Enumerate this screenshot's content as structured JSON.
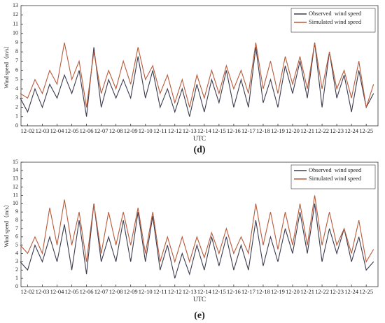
{
  "chart_data": [
    {
      "type": "line",
      "title": "(d)",
      "xlabel": "UTC",
      "ylabel": "Wind speed（m/s）",
      "legend": "upper right",
      "x": [
        1.5,
        2,
        2.5,
        3,
        3.5,
        4,
        4.5,
        5,
        5.5,
        6,
        6.5,
        7,
        7.5,
        8,
        8.5,
        9,
        9.5,
        10,
        10.5,
        11,
        11.5,
        12,
        12.5,
        13,
        13.5,
        14,
        14.5,
        15,
        15.5,
        16,
        16.5,
        17,
        17.5,
        18,
        18.5,
        19,
        19.5,
        20,
        20.5,
        21,
        21.5,
        22,
        22.5,
        23,
        23.5,
        24,
        24.5,
        25,
        25.5
      ],
      "series": [
        {
          "name": "Observed  wind speed",
          "color": "#3b3b4f",
          "values": [
            3,
            1.5,
            4,
            2,
            4.5,
            3,
            5.5,
            3.5,
            6,
            1,
            8.5,
            2,
            5,
            3,
            5,
            3,
            7.5,
            3,
            6,
            2,
            4,
            1.5,
            4,
            1,
            4.5,
            1.5,
            5,
            2.5,
            6,
            2,
            5,
            2,
            8.5,
            2.5,
            5,
            2,
            6.5,
            3.5,
            7,
            3,
            9,
            2,
            8,
            3,
            5.5,
            1.5,
            6,
            2,
            3.5
          ]
        },
        {
          "name": "Simulated wind speed",
          "color": "#b85a3a",
          "values": [
            3.5,
            3,
            5,
            3.5,
            6,
            4.5,
            9,
            5,
            7,
            2,
            8,
            3.5,
            6,
            4,
            7,
            4.5,
            8.5,
            5,
            6.5,
            3.5,
            5.5,
            2.5,
            5,
            2,
            5.5,
            3,
            6,
            3.5,
            6.5,
            4,
            6,
            3.5,
            9,
            4,
            7,
            3.5,
            7.5,
            4.5,
            7.5,
            4,
            9,
            4,
            8,
            4,
            6,
            3,
            7,
            2,
            4.5
          ]
        }
      ],
      "xlim": [
        1.55,
        25.8
      ],
      "xticks": [
        {
          "value": 2,
          "label": "12-02"
        },
        {
          "value": 3,
          "label": "12-03"
        },
        {
          "value": 4,
          "label": "12-04"
        },
        {
          "value": 5,
          "label": "12-05"
        },
        {
          "value": 6,
          "label": "12-06"
        },
        {
          "value": 7,
          "label": "12-07"
        },
        {
          "value": 8,
          "label": "12-08"
        },
        {
          "value": 9,
          "label": "12-09"
        },
        {
          "value": 10,
          "label": "12-10"
        },
        {
          "value": 11,
          "label": "12-11"
        },
        {
          "value": 12,
          "label": "12-12"
        },
        {
          "value": 13,
          "label": "12-13"
        },
        {
          "value": 14,
          "label": "12-14"
        },
        {
          "value": 15,
          "label": "12-15"
        },
        {
          "value": 16,
          "label": "12-16"
        },
        {
          "value": 17,
          "label": "12-17"
        },
        {
          "value": 18,
          "label": "12-18"
        },
        {
          "value": 19,
          "label": "12-19"
        },
        {
          "value": 20,
          "label": "12-20"
        },
        {
          "value": 21,
          "label": "12-21"
        },
        {
          "value": 22,
          "label": "12-22"
        },
        {
          "value": 23,
          "label": "12-23"
        },
        {
          "value": 24,
          "label": "12-24"
        },
        {
          "value": 25,
          "label": "12-25"
        }
      ],
      "ylim": [
        0,
        13
      ],
      "yticks": [
        0,
        1,
        2,
        3,
        4,
        5,
        6,
        7,
        8,
        9,
        10,
        11,
        12,
        13
      ]
    },
    {
      "type": "line",
      "title": "(e)",
      "xlabel": "UTC",
      "ylabel": "Wind speed（m/s）",
      "legend": "upper right",
      "x": [
        1.5,
        2,
        2.5,
        3,
        3.5,
        4,
        4.5,
        5,
        5.5,
        6,
        6.5,
        7,
        7.5,
        8,
        8.5,
        9,
        9.5,
        10,
        10.5,
        11,
        11.5,
        12,
        12.5,
        13,
        13.5,
        14,
        14.5,
        15,
        15.5,
        16,
        16.5,
        17,
        17.5,
        18,
        18.5,
        19,
        19.5,
        20,
        20.5,
        21,
        21.5,
        22,
        22.5,
        23,
        23.5,
        24,
        24.5,
        25,
        25.5
      ],
      "series": [
        {
          "name": "Observed  wind speed",
          "color": "#3b3b4f",
          "values": [
            3,
            2,
            5,
            3,
            6,
            3,
            7.5,
            2,
            8,
            1.5,
            10,
            3,
            6,
            3,
            8,
            3,
            9,
            3,
            8.5,
            2,
            5,
            1,
            4,
            1.5,
            5,
            2,
            6,
            2.5,
            6,
            2,
            5,
            2,
            8,
            2.5,
            6,
            3,
            7,
            4,
            9,
            4,
            10,
            3,
            7,
            4,
            7,
            3,
            6,
            2,
            3
          ]
        },
        {
          "name": "Simulated wind speed",
          "color": "#b85a3a",
          "values": [
            5,
            4,
            6,
            4,
            9.5,
            5,
            10.5,
            5,
            9,
            3,
            10,
            4,
            9,
            5,
            9,
            5,
            9.5,
            4,
            9,
            3,
            6,
            3,
            6,
            3,
            6,
            3.5,
            6.5,
            4,
            7,
            4,
            6,
            4,
            10,
            5,
            9,
            4.5,
            9,
            5,
            10,
            5,
            11,
            5,
            9,
            5,
            7,
            4,
            8,
            3,
            4.5
          ]
        }
      ],
      "xlim": [
        1.55,
        25.8
      ],
      "xticks": [
        {
          "value": 2,
          "label": "12-02"
        },
        {
          "value": 3,
          "label": "12-03"
        },
        {
          "value": 4,
          "label": "12-04"
        },
        {
          "value": 5,
          "label": "12-05"
        },
        {
          "value": 6,
          "label": "12-06"
        },
        {
          "value": 7,
          "label": "12-07"
        },
        {
          "value": 8,
          "label": "12-08"
        },
        {
          "value": 9,
          "label": "12-09"
        },
        {
          "value": 10,
          "label": "12-10"
        },
        {
          "value": 11,
          "label": "12-11"
        },
        {
          "value": 12,
          "label": "12-12"
        },
        {
          "value": 13,
          "label": "12-13"
        },
        {
          "value": 14,
          "label": "12-14"
        },
        {
          "value": 15,
          "label": "12-15"
        },
        {
          "value": 16,
          "label": "12-16"
        },
        {
          "value": 17,
          "label": "12-17"
        },
        {
          "value": 18,
          "label": "12-18"
        },
        {
          "value": 19,
          "label": "12-19"
        },
        {
          "value": 20,
          "label": "12-20"
        },
        {
          "value": 21,
          "label": "12-21"
        },
        {
          "value": 22,
          "label": "12-22"
        },
        {
          "value": 23,
          "label": "12-23"
        },
        {
          "value": 24,
          "label": "12-24"
        },
        {
          "value": 25,
          "label": "12-25"
        }
      ],
      "ylim": [
        0,
        15
      ],
      "yticks": [
        0,
        1,
        2,
        3,
        4,
        5,
        6,
        7,
        8,
        9,
        10,
        11,
        12,
        13,
        14,
        15
      ]
    }
  ]
}
